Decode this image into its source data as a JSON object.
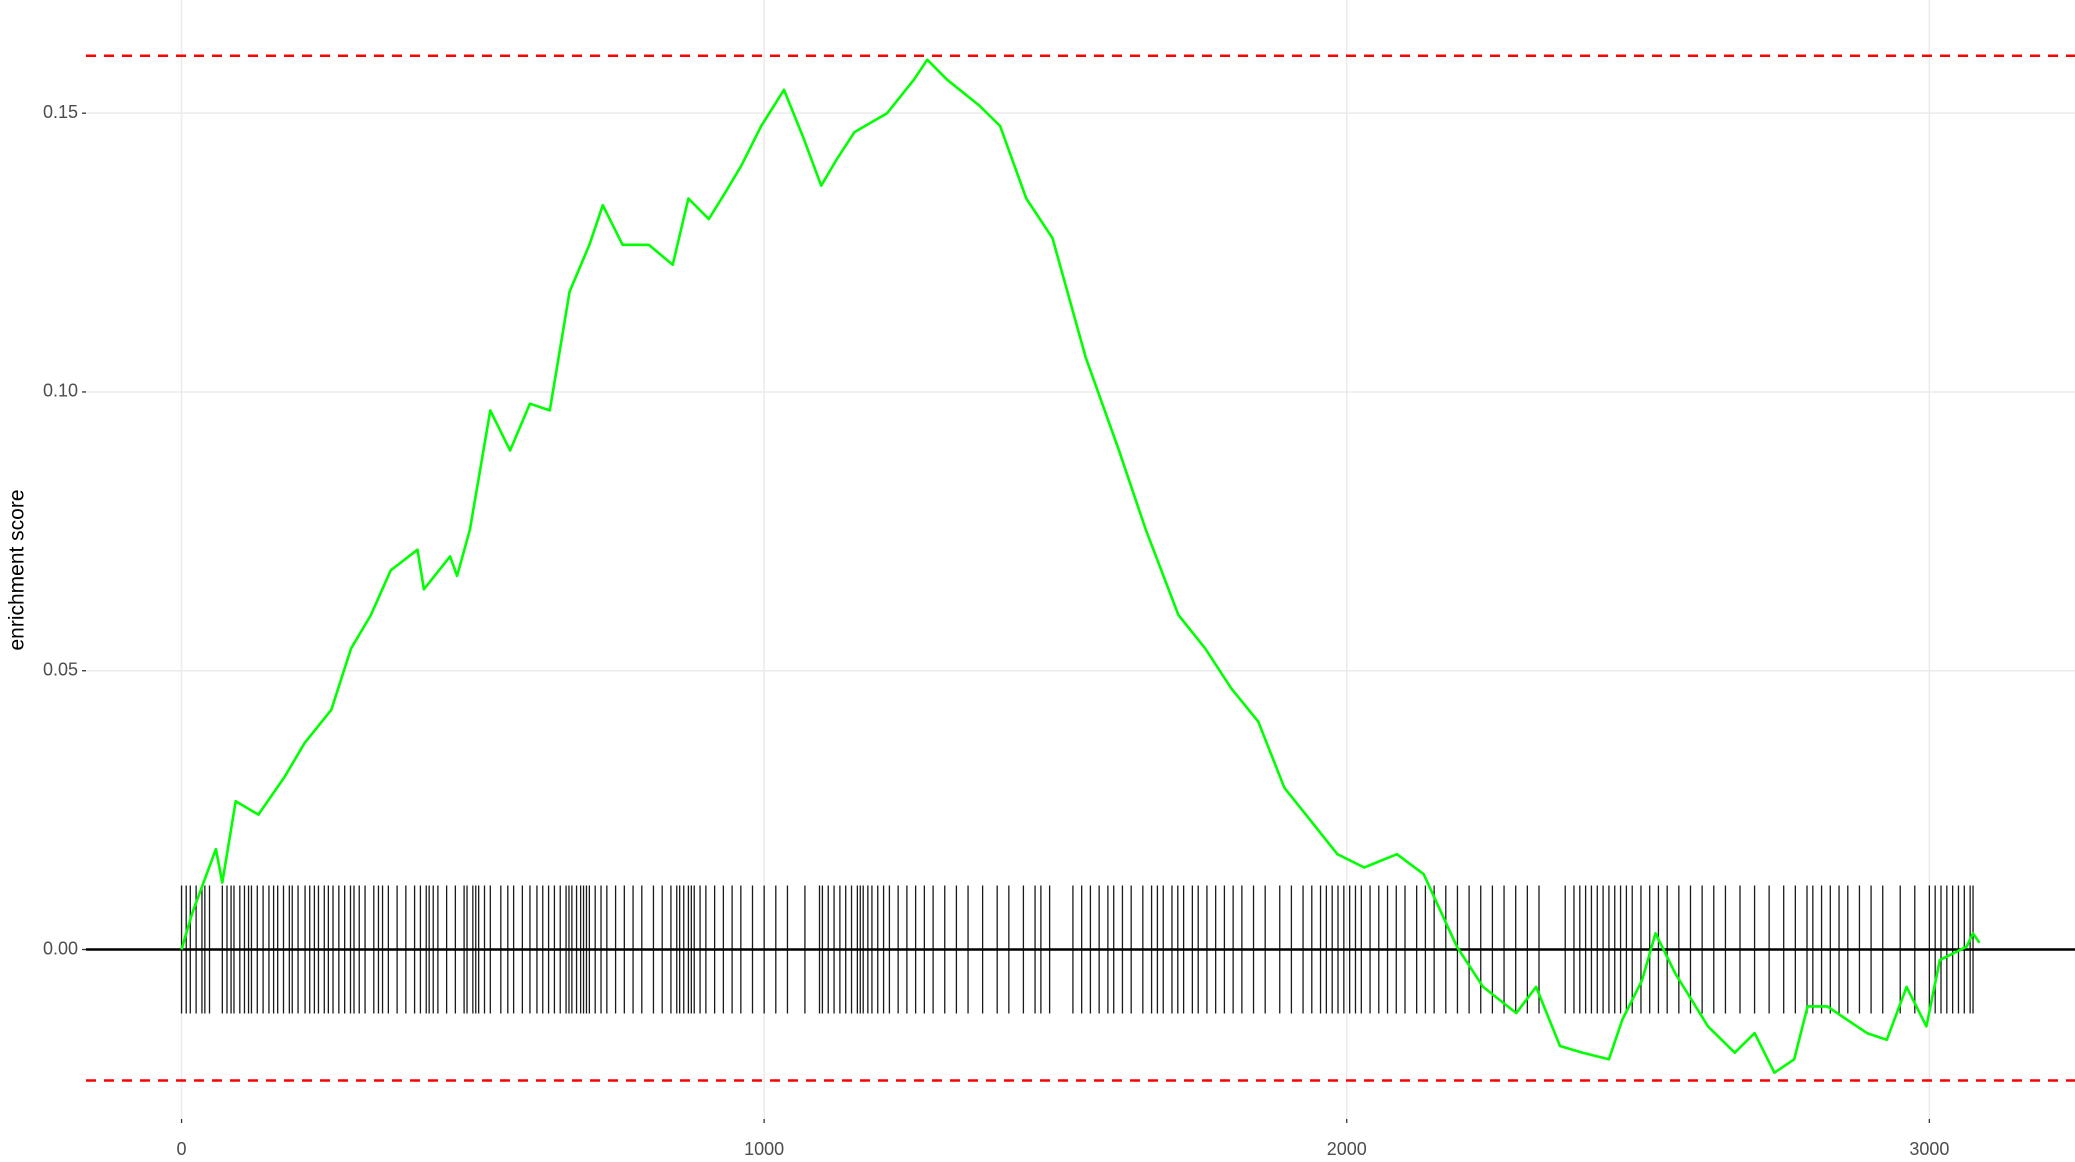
{
  "chart_data": {
    "type": "line",
    "y_label": "enrichment score",
    "x": [
      0,
      18,
      59,
      70,
      93,
      132,
      177,
      211,
      257,
      291,
      325,
      359,
      405,
      416,
      461,
      473,
      495,
      530,
      564,
      598,
      632,
      666,
      700,
      723,
      757,
      802,
      843,
      870,
      905,
      934,
      961,
      995,
      1034,
      1068,
      1098,
      1125,
      1155,
      1211,
      1257,
      1280,
      1314,
      1370,
      1405,
      1450,
      1495,
      1552,
      1609,
      1655,
      1711,
      1757,
      1802,
      1848,
      1893,
      1939,
      1984,
      2030,
      2086,
      2132,
      2189,
      2234,
      2291,
      2325,
      2366,
      2405,
      2450,
      2473,
      2507,
      2530,
      2564,
      2620,
      2666,
      2700,
      2734,
      2768,
      2791,
      2825,
      2859,
      2893,
      2927,
      2961,
      2995,
      3018,
      3041,
      3064,
      3075,
      3086
    ],
    "values": [
      0,
      0.0064,
      0.018,
      0.012,
      0.0266,
      0.0242,
      0.031,
      0.037,
      0.043,
      0.054,
      0.06,
      0.068,
      0.0717,
      0.0646,
      0.0705,
      0.067,
      0.0753,
      0.0967,
      0.0895,
      0.0979,
      0.0967,
      0.118,
      0.1264,
      0.1335,
      0.1264,
      0.1264,
      0.1228,
      0.1347,
      0.131,
      0.1359,
      0.1406,
      0.1477,
      0.1542,
      0.1454,
      0.137,
      0.1418,
      0.1466,
      0.15,
      0.156,
      0.1596,
      0.156,
      0.1513,
      0.1477,
      0.1347,
      0.1276,
      0.1062,
      0.0895,
      0.0753,
      0.06,
      0.054,
      0.0468,
      0.0409,
      0.029,
      0.023,
      0.0171,
      0.0147,
      0.0171,
      0.0135,
      0.0005,
      -0.0067,
      -0.0114,
      -0.0067,
      -0.0173,
      -0.0185,
      -0.0197,
      -0.0126,
      -0.0055,
      0.0029,
      -0.0043,
      -0.0138,
      -0.0185,
      -0.015,
      -0.0221,
      -0.0197,
      -0.0102,
      -0.0102,
      -0.0126,
      -0.015,
      -0.0162,
      -0.0067,
      -0.0138,
      -0.0019,
      -0.0007,
      0.0005,
      0.0029,
      0.0012
    ],
    "color": "#00ff00",
    "hits": [
      0,
      8,
      15,
      25,
      35,
      40,
      48,
      70,
      78,
      85,
      90,
      100,
      108,
      115,
      120,
      130,
      140,
      150,
      158,
      165,
      175,
      185,
      190,
      200,
      212,
      220,
      228,
      235,
      245,
      252,
      260,
      270,
      280,
      290,
      296,
      305,
      315,
      330,
      338,
      345,
      355,
      370,
      385,
      400,
      410,
      420,
      425,
      432,
      440,
      455,
      470,
      485,
      490,
      500,
      505,
      510,
      520,
      530,
      548,
      560,
      570,
      585,
      598,
      610,
      620,
      630,
      640,
      650,
      660,
      665,
      670,
      678,
      685,
      690,
      695,
      700,
      710,
      720,
      730,
      745,
      760,
      775,
      790,
      810,
      825,
      840,
      850,
      855,
      862,
      870,
      875,
      880,
      890,
      900,
      915,
      930,
      945,
      960,
      980,
      1000,
      1020,
      1040,
      1070,
      1095,
      1100,
      1110,
      1120,
      1130,
      1140,
      1150,
      1160,
      1165,
      1170,
      1178,
      1185,
      1195,
      1205,
      1215,
      1230,
      1245,
      1260,
      1275,
      1290,
      1310,
      1330,
      1350,
      1375,
      1400,
      1420,
      1445,
      1465,
      1475,
      1490,
      1530,
      1545,
      1560,
      1575,
      1590,
      1600,
      1615,
      1630,
      1650,
      1665,
      1675,
      1685,
      1700,
      1710,
      1720,
      1735,
      1745,
      1760,
      1775,
      1790,
      1805,
      1820,
      1840,
      1860,
      1885,
      1905,
      1925,
      1940,
      1955,
      1965,
      1975,
      1985,
      1995,
      2005,
      2015,
      2025,
      2040,
      2055,
      2070,
      2085,
      2100,
      2120,
      2135,
      2150,
      2170,
      2190,
      2210,
      2230,
      2250,
      2270,
      2290,
      2310,
      2330,
      2375,
      2390,
      2400,
      2410,
      2420,
      2430,
      2440,
      2450,
      2460,
      2470,
      2480,
      2490,
      2505,
      2520,
      2535,
      2550,
      2570,
      2590,
      2610,
      2630,
      2650,
      2675,
      2700,
      2725,
      2750,
      2770,
      2790,
      2800,
      2815,
      2830,
      2845,
      2860,
      2880,
      2900,
      2920,
      2950,
      2975,
      3000,
      3010,
      3020,
      3030,
      3040,
      3050,
      3060,
      3070,
      3075
    ],
    "hits_color": "#1a1a1a",
    "hlines": [
      0.1603,
      -0.0235
    ],
    "hlines_color": "#ff0000",
    "xlim": [
      -164,
      3250
    ],
    "ylim": [
      -0.0304,
      0.1703
    ],
    "xticks": [
      0,
      1000,
      2000,
      3000
    ],
    "yticks": [
      {
        "value": 0,
        "label": "0.00"
      },
      {
        "value": 0.05,
        "label": "0.05"
      },
      {
        "value": 0.1,
        "label": "0.10"
      },
      {
        "value": 0.15,
        "label": "0.15"
      }
    ],
    "grid": true
  }
}
